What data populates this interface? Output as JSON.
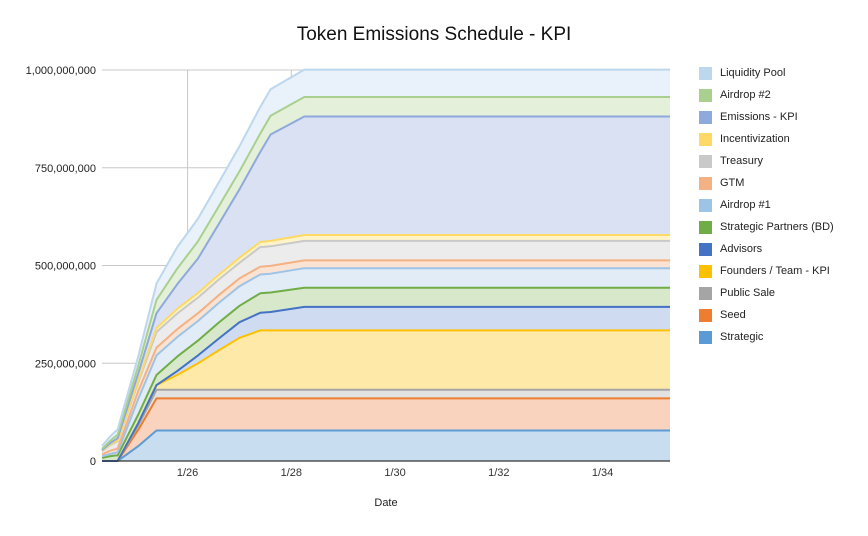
{
  "chart_data": {
    "type": "area",
    "stacked": true,
    "title": "Token Emissions Schedule - KPI",
    "xlabel": "Date",
    "ylabel": "",
    "x_ticks": [
      "1/26",
      "1/28",
      "1/30",
      "1/32",
      "1/34"
    ],
    "x_tick_positions": [
      26,
      28,
      30,
      32,
      34
    ],
    "xlim": [
      24.35,
      35.3
    ],
    "y_ticks": [
      "0",
      "250,000,000",
      "500,000,000",
      "750,000,000",
      "1,000,000,000"
    ],
    "y_tick_values": [
      0,
      250000000,
      500000000,
      750000000,
      1000000000
    ],
    "ylim": [
      0,
      1000000000
    ],
    "grid": true,
    "legend_position": "right",
    "x": [
      24.35,
      24.5,
      24.6,
      24.65,
      25.05,
      25.4,
      25.8,
      26.2,
      26.6,
      27.0,
      27.4,
      27.6,
      28.25,
      35.3
    ],
    "series": [
      {
        "name": "Strategic",
        "color": "#5b9bd5",
        "fill": "#c9ddf1",
        "values": [
          0,
          0,
          0,
          0,
          38000000.0,
          78000000.0,
          78000000.0,
          78000000.0,
          78000000.0,
          78000000.0,
          78000000.0,
          78000000.0,
          78000000.0,
          78000000.0
        ]
      },
      {
        "name": "Seed",
        "color": "#ed7d31",
        "fill": "#f9d3bd",
        "values": [
          0,
          0,
          0,
          0,
          42000000.0,
          82000000.0,
          82000000.0,
          82000000.0,
          82000000.0,
          82000000.0,
          82000000.0,
          82000000.0,
          82000000.0,
          82000000.0
        ]
      },
      {
        "name": "Public Sale",
        "color": "#a5a5a5",
        "fill": "#e2e2e2",
        "values": [
          0,
          0,
          0,
          0,
          11000000.0,
          22000000.0,
          22000000.0,
          22000000.0,
          22000000.0,
          22000000.0,
          22000000.0,
          22000000.0,
          22000000.0,
          22000000.0
        ]
      },
      {
        "name": "Founders / Team - KPI",
        "color": "#ffc000",
        "fill": "#fee9a9",
        "values": [
          0,
          0,
          0,
          0,
          6000000.0,
          12000000.0,
          38000000.0,
          68000000.0,
          101000000.0,
          133000000.0,
          152000000.0,
          152000000.0,
          152000000.0,
          152000000.0
        ]
      },
      {
        "name": "Advisors",
        "color": "#4472c4",
        "fill": "#cfdbf0",
        "values": [
          0,
          0,
          0,
          0,
          0,
          0,
          10000000.0,
          20000000.0,
          30000000.0,
          40000000.0,
          45000000.0,
          47000000.0,
          60000000.0,
          60000000.0
        ]
      },
      {
        "name": "Strategic Partners (BD)",
        "color": "#70ad47",
        "fill": "#d7e9ca",
        "values": [
          8000000.0,
          12000000.0,
          14000000.0,
          14000000.0,
          22000000.0,
          26000000.0,
          37000000.0,
          38000000.0,
          41000000.0,
          42000000.0,
          50000000.0,
          50000000.0,
          49000000.0,
          49000000.0
        ]
      },
      {
        "name": "Airdrop #1",
        "color": "#9dc3e6",
        "fill": "#e1ecf7",
        "values": [
          4000000.0,
          6000000.0,
          7000000.0,
          8000000.0,
          40000000.0,
          50000000.0,
          50000000.0,
          50000000.0,
          50000000.0,
          50000000.0,
          48000000.0,
          48000000.0,
          50000000.0,
          50000000.0
        ]
      },
      {
        "name": "GTM",
        "color": "#f4b183",
        "fill": "#fbe3d3",
        "values": [
          5000000.0,
          8000000.0,
          9000000.0,
          10000000.0,
          20000000.0,
          20000000.0,
          20000000.0,
          20000000.0,
          20000000.0,
          20000000.0,
          20000000.0,
          20000000.0,
          20000000.0,
          20000000.0
        ]
      },
      {
        "name": "Treasury",
        "color": "#c9c9c9",
        "fill": "#ececec",
        "values": [
          8000000.0,
          14000000.0,
          17000000.0,
          18000000.0,
          22000000.0,
          40000000.0,
          40000000.0,
          40000000.0,
          40000000.0,
          40000000.0,
          50000000.0,
          50000000.0,
          50000000.0,
          50000000.0
        ]
      },
      {
        "name": "Incentivization",
        "color": "#ffd966",
        "fill": "#fff3c8",
        "values": [
          1000000.0,
          2000000.0,
          2000000.0,
          2000000.0,
          5000000.0,
          10000000.0,
          12000000.0,
          12000000.0,
          12000000.0,
          13000000.0,
          13000000.0,
          14000000.0,
          15000000.0,
          15000000.0
        ]
      },
      {
        "name": "Emissions - KPI",
        "color": "#8ea9db",
        "fill": "#dae1f3",
        "values": [
          2000000.0,
          3000000.0,
          5000000.0,
          6000000.0,
          18000000.0,
          38000000.0,
          63000000.0,
          88000000.0,
          130000000.0,
          175000000.0,
          230000000.0,
          272000000.0,
          303000000.0,
          303000000.0
        ]
      },
      {
        "name": "Airdrop #2",
        "color": "#a9d08e",
        "fill": "#e4f0da",
        "values": [
          3000000.0,
          6000000.0,
          8000000.0,
          9000000.0,
          20000000.0,
          34000000.0,
          40000000.0,
          44000000.0,
          45000000.0,
          46000000.0,
          47000000.0,
          48000000.0,
          50000000.0,
          50000000.0
        ]
      },
      {
        "name": "Liquidity Pool",
        "color": "#bdd7ee",
        "fill": "#e9f1fa",
        "values": [
          8000000.0,
          11000000.0,
          13000000.0,
          13000000.0,
          24000000.0,
          42000000.0,
          55000000.0,
          58000000.0,
          61000000.0,
          64000000.0,
          68000000.0,
          68000000.0,
          70000000.0,
          70000000.0
        ]
      }
    ]
  }
}
